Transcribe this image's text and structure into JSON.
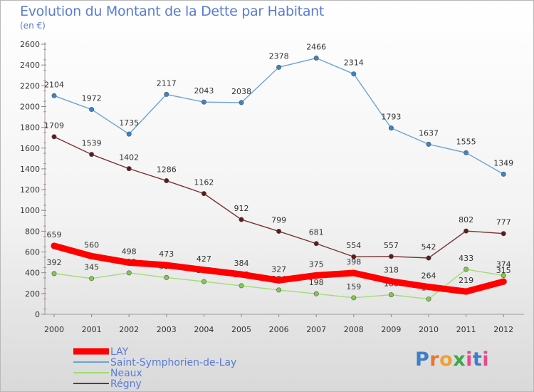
{
  "title": "Evolution du Montant de la Dette par Habitant",
  "subtitle": "(en €)",
  "logo_text": "Proxiti",
  "chart_data": {
    "type": "line",
    "title": "Evolution du Montant de la Dette par Habitant",
    "subtitle": "(en €)",
    "categories": [
      "2000",
      "2001",
      "2002",
      "2003",
      "2004",
      "2005",
      "2006",
      "2007",
      "2008",
      "2009",
      "2010",
      "2011",
      "2012"
    ],
    "ylim": [
      0,
      2600
    ],
    "yticks": [
      0,
      200,
      400,
      600,
      800,
      1000,
      1200,
      1400,
      1600,
      1800,
      2000,
      2200,
      2400,
      2600
    ],
    "grid": false,
    "legend_position": "bottom-left",
    "series": [
      {
        "name": "Saint-Symphorien-de-Lay",
        "color": "#6aa3d6",
        "marker": "#3b84c6",
        "values": [
          2104,
          1972,
          1735,
          2117,
          2043,
          2038,
          2378,
          2466,
          2314,
          1793,
          1637,
          1555,
          1349
        ]
      },
      {
        "name": "Régny",
        "color": "#7a3030",
        "marker": "#5a1c1c",
        "values": [
          1709,
          1539,
          1402,
          1286,
          1162,
          912,
          799,
          681,
          554,
          557,
          542,
          802,
          777
        ]
      },
      {
        "name": "Neaux",
        "color": "#9dde72",
        "marker": "#82c84e",
        "values": [
          392,
          345,
          399,
          354,
          315,
          275,
          234,
          198,
          159,
          188,
          147,
          433,
          374
        ]
      },
      {
        "name": "LAY",
        "color": "#ff0000",
        "marker": "#ff0000",
        "values": [
          659,
          560,
          498,
          473,
          427,
          384,
          327,
          375,
          398,
          318,
          264,
          219,
          315
        ]
      }
    ],
    "legend": [
      "LAY",
      "Saint-Symphorien-de-Lay",
      "Neaux",
      "Régny"
    ]
  }
}
